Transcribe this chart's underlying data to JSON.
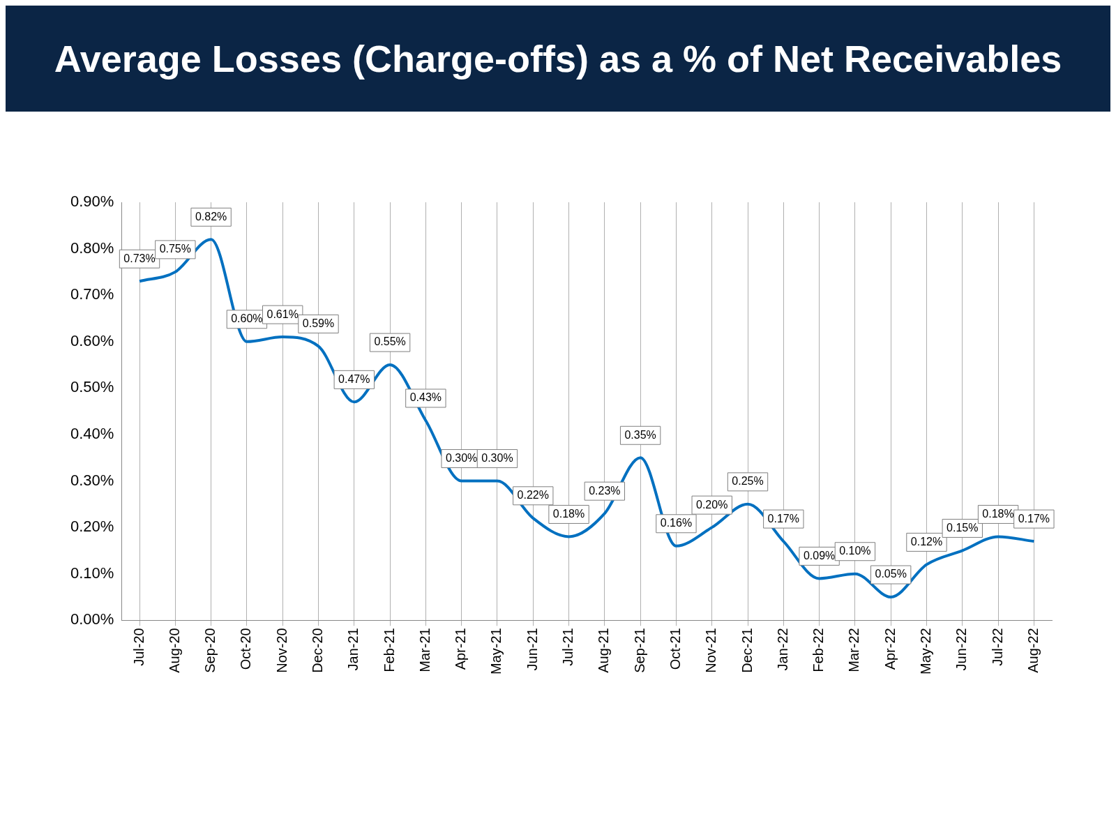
{
  "chart_data": {
    "type": "line",
    "title": "Average Losses (Charge-offs) as a % of Net Receivables",
    "categories": [
      "Jul-20",
      "Aug-20",
      "Sep-20",
      "Oct-20",
      "Nov-20",
      "Dec-20",
      "Jan-21",
      "Feb-21",
      "Mar-21",
      "Apr-21",
      "May-21",
      "Jun-21",
      "Jul-21",
      "Aug-21",
      "Sep-21",
      "Oct-21",
      "Nov-21",
      "Dec-21",
      "Jan-22",
      "Feb-22",
      "Mar-22",
      "Apr-22",
      "May-22",
      "Jun-22",
      "Jul-22",
      "Aug-22"
    ],
    "series": [
      {
        "color": "#0070c0",
        "values": [
          0.73,
          0.75,
          0.82,
          0.6,
          0.61,
          0.59,
          0.47,
          0.55,
          0.43,
          0.3,
          0.3,
          0.22,
          0.18,
          0.23,
          0.35,
          0.16,
          0.2,
          0.25,
          0.17,
          0.09,
          0.1,
          0.05,
          0.12,
          0.15,
          0.18,
          0.17
        ]
      }
    ],
    "value_labels": [
      "0.73%",
      "0.75%",
      "0.82%",
      "0.60%",
      "0.61%",
      "0.59%",
      "0.47%",
      "0.55%",
      "0.43%",
      "0.30%",
      "0.30%",
      "0.22%",
      "0.18%",
      "0.23%",
      "0.35%",
      "0.16%",
      "0.20%",
      "0.25%",
      "0.17%",
      "0.09%",
      "0.10%",
      "0.05%",
      "0.12%",
      "0.15%",
      "0.18%",
      "0.17%"
    ],
    "ylim": [
      0,
      0.9
    ],
    "yticks": [
      {
        "value": 0,
        "label": "0.00%"
      },
      {
        "value": 0.1,
        "label": "0.10%"
      },
      {
        "value": 0.2,
        "label": "0.20%"
      },
      {
        "value": 0.3,
        "label": "0.30%"
      },
      {
        "value": 0.4,
        "label": "0.40%"
      },
      {
        "value": 0.5,
        "label": "0.50%"
      },
      {
        "value": 0.6,
        "label": "0.60%"
      },
      {
        "value": 0.7,
        "label": "0.70%"
      },
      {
        "value": 0.8,
        "label": "0.80%"
      },
      {
        "value": 0.9,
        "label": "0.90%"
      }
    ],
    "grid": "x",
    "legend": false,
    "marker": "none",
    "line_style": "solid"
  }
}
